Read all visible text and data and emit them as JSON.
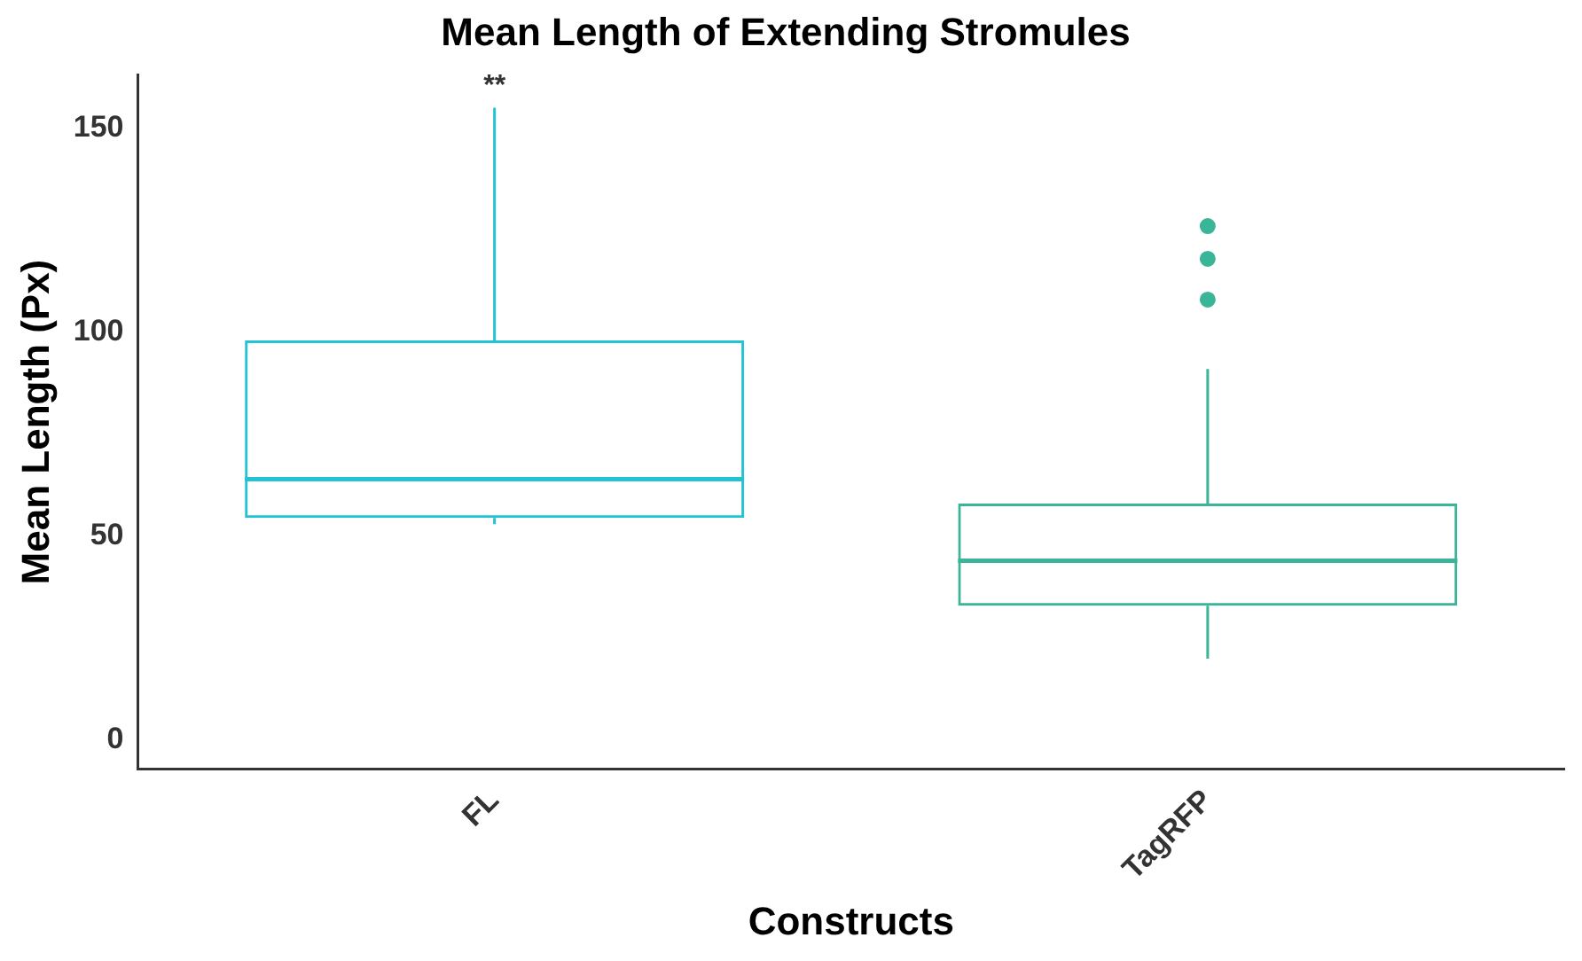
{
  "chart_data": {
    "type": "box",
    "title": "Mean Length of Extending Stromules",
    "xlabel": "Constructs",
    "ylabel": "Mean Length (Px)",
    "categories": [
      "FL",
      "TagRFP"
    ],
    "colors": [
      "#22c3d3",
      "#3bb597"
    ],
    "boxes": [
      {
        "low": 53,
        "q1": 54.5,
        "median": 64,
        "q3": 98,
        "high": 155
      },
      {
        "low": 20,
        "q1": 33,
        "median": 44,
        "q3": 58,
        "high": 91,
        "outliers": [
          108,
          118,
          126
        ]
      }
    ],
    "ylim": [
      -7,
      163
    ],
    "yticks": [
      0,
      50,
      100,
      150
    ],
    "grid": false,
    "legend": false,
    "annotations": [
      "**"
    ]
  }
}
